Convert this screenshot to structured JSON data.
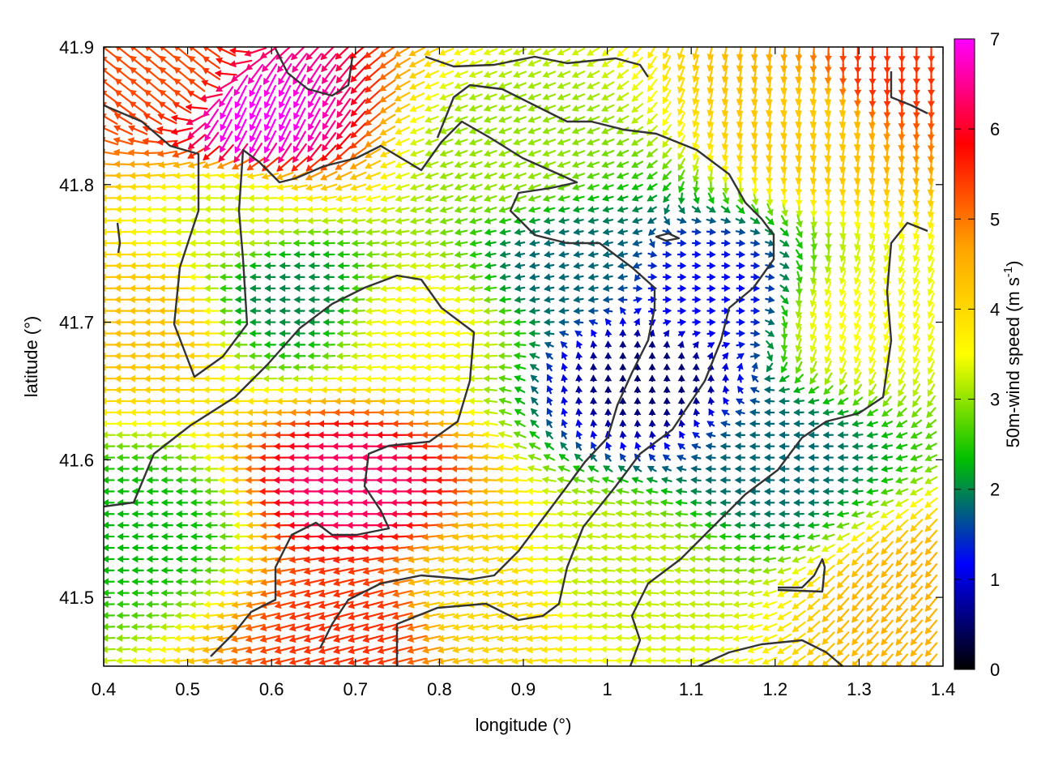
{
  "chart_data": {
    "type": "heatmap",
    "subtype": "wind vector field colored by speed",
    "xlabel": "longitude (°)",
    "ylabel": "latitude (°)",
    "colorbar_label": "50m-wind speed (m s",
    "colorbar_label_sup": "-1",
    "colorbar_label_end": ")",
    "xlim": [
      0.4,
      1.4
    ],
    "ylim": [
      41.45,
      41.9
    ],
    "x_ticks": [
      0.4,
      0.5,
      0.6,
      0.7,
      0.8,
      0.9,
      1.0,
      1.1,
      1.2,
      1.3,
      1.4
    ],
    "x_tick_labels": [
      "0.4",
      "0.5",
      "0.6",
      "0.7",
      "0.8",
      "0.9",
      "1",
      "1.1",
      "1.2",
      "1.3",
      "1.4"
    ],
    "y_ticks": [
      41.5,
      41.6,
      41.7,
      41.8,
      41.9
    ],
    "y_tick_labels": [
      "41.5",
      "41.6",
      "41.7",
      "41.8",
      "41.9"
    ],
    "colorbar_range": [
      0,
      7
    ],
    "colorbar_ticks": [
      0,
      1,
      2,
      3,
      4,
      5,
      6,
      7
    ],
    "colorbar_tick_labels": [
      "0",
      "1",
      "2",
      "3",
      "4",
      "5",
      "6",
      "7"
    ],
    "colormap": [
      "#000000",
      "#0000ff",
      "#00c000",
      "#ffff00",
      "#ffa500",
      "#ff0000",
      "#ff00ff"
    ],
    "contour_color": "#333333",
    "wind_samples": [
      {
        "lon": 0.45,
        "lat": 41.7,
        "speed": 4.3,
        "dir_deg": 180
      },
      {
        "lon": 0.55,
        "lat": 41.78,
        "speed": 3.3,
        "dir_deg": 180
      },
      {
        "lon": 0.62,
        "lat": 41.72,
        "speed": 2.0,
        "dir_deg": 180
      },
      {
        "lon": 0.7,
        "lat": 41.58,
        "speed": 6.3,
        "dir_deg": 180
      },
      {
        "lon": 0.78,
        "lat": 41.7,
        "speed": 3.5,
        "dir_deg": 185
      },
      {
        "lon": 0.88,
        "lat": 41.82,
        "speed": 3.0,
        "dir_deg": 200
      },
      {
        "lon": 0.95,
        "lat": 41.74,
        "speed": 1.8,
        "dir_deg": 190
      },
      {
        "lon": 1.05,
        "lat": 41.66,
        "speed": 0.5,
        "dir_deg": 90
      },
      {
        "lon": 1.12,
        "lat": 41.72,
        "speed": 1.2,
        "dir_deg": 0
      },
      {
        "lon": 1.2,
        "lat": 41.6,
        "speed": 1.8,
        "dir_deg": 180
      },
      {
        "lon": 1.25,
        "lat": 41.85,
        "speed": 4.2,
        "dir_deg": 260
      },
      {
        "lon": 1.33,
        "lat": 41.88,
        "speed": 5.5,
        "dir_deg": 270
      },
      {
        "lon": 0.48,
        "lat": 41.88,
        "speed": 5.3,
        "dir_deg": 140
      },
      {
        "lon": 0.58,
        "lat": 41.85,
        "speed": 7.0,
        "dir_deg": 245
      },
      {
        "lon": 0.7,
        "lat": 41.48,
        "speed": 5.5,
        "dir_deg": 195
      },
      {
        "lon": 0.85,
        "lat": 41.5,
        "speed": 4.0,
        "dir_deg": 190
      },
      {
        "lon": 1.0,
        "lat": 41.52,
        "speed": 3.2,
        "dir_deg": 175
      },
      {
        "lon": 1.38,
        "lat": 41.5,
        "speed": 4.5,
        "dir_deg": 230
      },
      {
        "lon": 0.45,
        "lat": 41.55,
        "speed": 2.3,
        "dir_deg": 180
      },
      {
        "lon": 1.3,
        "lat": 41.7,
        "speed": 3.5,
        "dir_deg": 250
      }
    ]
  }
}
